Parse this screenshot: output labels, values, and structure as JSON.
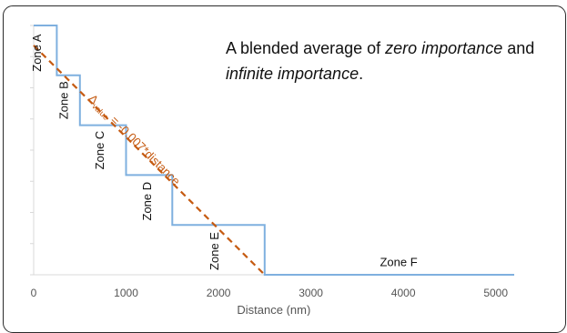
{
  "chart_data": {
    "type": "line",
    "title_parts": [
      {
        "text": "A blended average of ",
        "italic": false
      },
      {
        "text": "zero importance",
        "italic": true
      },
      {
        "text": " and",
        "italic": false
      }
    ],
    "title_line2_parts": [
      {
        "text": "infinite importance",
        "italic": true
      },
      {
        "text": ".",
        "italic": false
      }
    ],
    "xlabel": "Distance (nm)",
    "ylabel": "",
    "xlim": [
      0,
      5200
    ],
    "ylim": [
      0,
      20
    ],
    "x_ticks": [
      0,
      1000,
      2000,
      3000,
      4000,
      5000
    ],
    "x_tick_labels": [
      "0",
      "1000",
      "2000",
      "3000",
      "4000",
      "5000"
    ],
    "y_ticks": [
      0,
      2.5,
      5,
      7.5,
      10,
      12.5,
      15,
      17.5,
      20
    ],
    "series": [
      {
        "kind": "step",
        "color": "#7fb0df",
        "points": [
          [
            0,
            20
          ],
          [
            250,
            20
          ],
          [
            250,
            16
          ],
          [
            500,
            16
          ],
          [
            500,
            12
          ],
          [
            1000,
            12
          ],
          [
            1000,
            8
          ],
          [
            1500,
            8
          ],
          [
            1500,
            4
          ],
          [
            2500,
            4
          ],
          [
            2500,
            0
          ],
          [
            5200,
            0
          ]
        ]
      },
      {
        "kind": "dashed-trend",
        "color": "#c55a11",
        "points": [
          [
            0,
            18.4
          ],
          [
            2500,
            0
          ]
        ]
      }
    ],
    "zones": [
      {
        "label": "Zone A",
        "x": 80,
        "y": 17.8,
        "rotate": -90
      },
      {
        "label": "Zone B",
        "x": 370,
        "y": 14.0,
        "rotate": -90
      },
      {
        "label": "Zone C",
        "x": 760,
        "y": 10.0,
        "rotate": -90
      },
      {
        "label": "Zone D",
        "x": 1270,
        "y": 5.9,
        "rotate": -90
      },
      {
        "label": "Zone E",
        "x": 2000,
        "y": 1.9,
        "rotate": -90
      },
      {
        "label": "Zone F",
        "x": 3950,
        "y": 0.7,
        "rotate": 0
      }
    ],
    "slope_annotation": {
      "delta": "Δ",
      "subscript": "value",
      "rest": " = -0.007*distance",
      "color": "#c55a11"
    },
    "grid": false
  }
}
